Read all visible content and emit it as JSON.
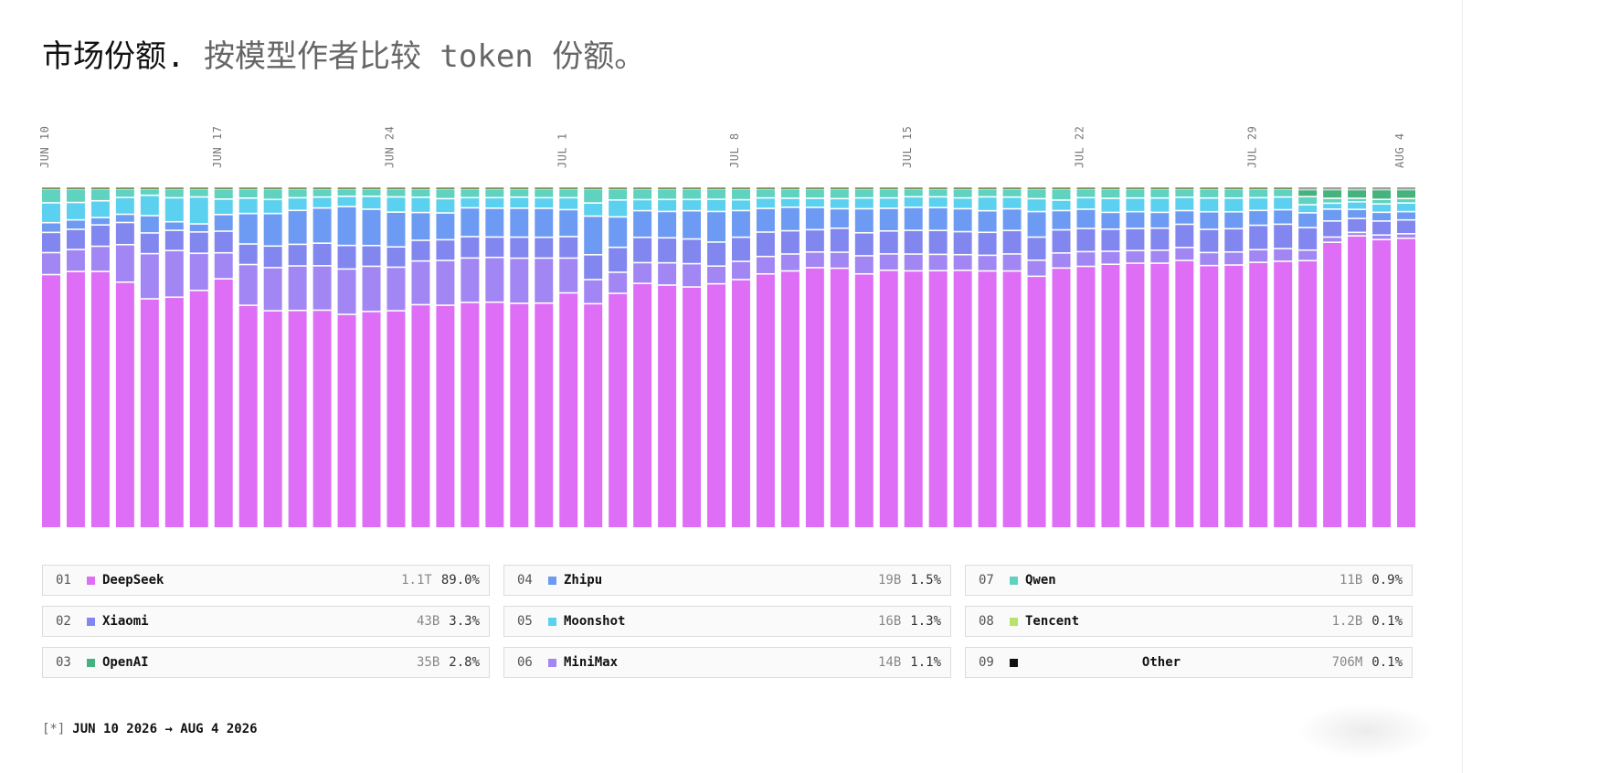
{
  "title": {
    "main": "市场份额",
    "dot": ".",
    "sub": " 按模型作者比较 token 份额。"
  },
  "colors": {
    "DeepSeek": "#dd6ef5",
    "MiniMax": "#a286f4",
    "Xiaomi": "#8286ef",
    "Zhipu": "#6d9bf3",
    "Moonshot": "#5cd0ef",
    "Qwen": "#5fd3c0",
    "OpenAI": "#46b27d",
    "Tencent": "#b4e46a",
    "Other": "#111111"
  },
  "legend": [
    {
      "rank": "01",
      "name": "DeepSeek",
      "tokens": "1.1T",
      "pct": "89.0%",
      "color": "#dd6ef5"
    },
    {
      "rank": "02",
      "name": "Xiaomi",
      "tokens": "43B",
      "pct": "3.3%",
      "color": "#8286ef"
    },
    {
      "rank": "03",
      "name": "OpenAI",
      "tokens": "35B",
      "pct": "2.8%",
      "color": "#46b27d"
    },
    {
      "rank": "04",
      "name": "Zhipu",
      "tokens": "19B",
      "pct": "1.5%",
      "color": "#6d9bf3"
    },
    {
      "rank": "05",
      "name": "Moonshot",
      "tokens": "16B",
      "pct": "1.3%",
      "color": "#5cd0ef"
    },
    {
      "rank": "06",
      "name": "MiniMax",
      "tokens": "14B",
      "pct": "1.1%",
      "color": "#a286f4"
    },
    {
      "rank": "07",
      "name": "Qwen",
      "tokens": "11B",
      "pct": "0.9%",
      "color": "#5fd3c0"
    },
    {
      "rank": "08",
      "name": "Tencent",
      "tokens": "1.2B",
      "pct": "0.1%",
      "color": "#b4e46a"
    },
    {
      "rank": "09",
      "name": "Other",
      "tokens": "706M",
      "pct": "0.1%",
      "color": "#111111"
    }
  ],
  "footer": {
    "star": "[*]",
    "range": "JUN 10 2026 → AUG 4 2026"
  },
  "chart_data": {
    "type": "bar",
    "stacked": true,
    "normalized": true,
    "ylim": [
      0,
      100
    ],
    "x_ticks": [
      {
        "index": 0,
        "label": "JUN 10"
      },
      {
        "index": 7,
        "label": "JUN 17"
      },
      {
        "index": 14,
        "label": "JUN 24"
      },
      {
        "index": 21,
        "label": "JUL 1"
      },
      {
        "index": 28,
        "label": "JUL 8"
      },
      {
        "index": 35,
        "label": "JUL 15"
      },
      {
        "index": 42,
        "label": "JUL 22"
      },
      {
        "index": 49,
        "label": "JUL 29"
      },
      {
        "index": 55,
        "label": "AUG 4"
      }
    ],
    "categories": [
      "Jun 10",
      "Jun 11",
      "Jun 12",
      "Jun 13",
      "Jun 14",
      "Jun 15",
      "Jun 16",
      "Jun 17",
      "Jun 18",
      "Jun 19",
      "Jun 20",
      "Jun 21",
      "Jun 22",
      "Jun 23",
      "Jun 24",
      "Jun 25",
      "Jun 26",
      "Jun 27",
      "Jun 28",
      "Jun 29",
      "Jun 30",
      "Jul 1",
      "Jul 2",
      "Jul 3",
      "Jul 4",
      "Jul 5",
      "Jul 6",
      "Jul 7",
      "Jul 8",
      "Jul 9",
      "Jul 10",
      "Jul 11",
      "Jul 12",
      "Jul 13",
      "Jul 14",
      "Jul 15",
      "Jul 16",
      "Jul 17",
      "Jul 18",
      "Jul 19",
      "Jul 20",
      "Jul 21",
      "Jul 22",
      "Jul 23",
      "Jul 24",
      "Jul 25",
      "Jul 26",
      "Jul 27",
      "Jul 28",
      "Jul 29",
      "Jul 30",
      "Jul 31",
      "Aug 1",
      "Aug 2",
      "Aug 3",
      "Aug 4"
    ],
    "series": [
      {
        "name": "DeepSeek",
        "values": [
          72.7,
          73.6,
          73.3,
          68.8,
          67.5,
          67.3,
          67.8,
          69.0,
          65.0,
          63.4,
          63.5,
          63.7,
          62.6,
          63.7,
          64.3,
          65.9,
          65.6,
          66.5,
          66.5,
          65.1,
          65.9,
          68.9,
          65.0,
          67.8,
          70.6,
          70.9,
          68.3,
          70.2,
          70.9,
          72.9,
          74.2,
          74.6,
          74.6,
          72.9,
          74.1,
          74.9,
          74.2,
          74.0,
          73.9,
          72.3,
          72.0,
          74.2,
          74.6,
          75.2,
          75.5,
          75.5,
          76.3,
          74.6,
          74.6,
          75.2,
          75.5,
          76.0,
          81.8,
          83.9,
          82.5,
          83.9
        ]
      },
      {
        "name": "MiniMax",
        "values": [
          6.3,
          6.3,
          7.2,
          10.5,
          13.3,
          13.6,
          10.6,
          7.2,
          11.9,
          12.6,
          13.0,
          13.0,
          13.3,
          13.3,
          12.9,
          12.9,
          13.2,
          13.1,
          13.2,
          13.1,
          13.2,
          10.2,
          7.0,
          6.1,
          6.0,
          6.5,
          6.6,
          5.1,
          5.2,
          5.0,
          4.9,
          4.5,
          4.6,
          5.2,
          4.7,
          4.9,
          4.7,
          4.5,
          4.5,
          4.8,
          4.6,
          4.3,
          4.2,
          3.7,
          3.6,
          3.7,
          3.7,
          3.7,
          3.7,
          3.6,
          3.6,
          3.0,
          1.5,
          1.0,
          1.3,
          1.3
        ]
      },
      {
        "name": "Xiaomi",
        "values": [
          5.8,
          5.8,
          6.1,
          6.2,
          6.1,
          5.9,
          6.1,
          6.0,
          6.0,
          6.3,
          6.3,
          6.6,
          6.9,
          6.1,
          6.0,
          6.1,
          6.1,
          6.3,
          6.0,
          6.1,
          6.1,
          6.3,
          7.2,
          7.2,
          7.3,
          7.3,
          7.0,
          6.9,
          6.9,
          7.0,
          6.7,
          6.4,
          6.9,
          6.6,
          6.6,
          6.9,
          6.9,
          6.6,
          6.6,
          6.6,
          6.6,
          6.6,
          6.6,
          6.3,
          6.3,
          6.3,
          6.6,
          6.6,
          6.6,
          6.9,
          6.9,
          6.4,
          4.6,
          4.0,
          4.0,
          4.0
        ]
      },
      {
        "name": "Zhipu",
        "values": [
          2.8,
          2.7,
          2.1,
          2.3,
          5.1,
          2.5,
          2.3,
          4.6,
          8.9,
          9.5,
          9.9,
          10.3,
          11.4,
          10.7,
          10.3,
          8.2,
          7.9,
          8.5,
          8.5,
          8.4,
          8.5,
          7.9,
          11.2,
          8.8,
          7.7,
          7.7,
          8.0,
          8.8,
          7.6,
          6.8,
          6.8,
          6.4,
          5.6,
          6.9,
          6.5,
          6.7,
          6.6,
          6.6,
          6.2,
          6.1,
          7.3,
          5.5,
          5.5,
          4.8,
          4.8,
          4.5,
          3.9,
          5.0,
          4.8,
          4.2,
          4.1,
          4.2,
          3.4,
          2.6,
          2.5,
          2.4
        ]
      },
      {
        "name": "Moonshot",
        "values": [
          5.7,
          5.0,
          4.8,
          4.7,
          6.0,
          7.0,
          7.7,
          4.3,
          4.5,
          4.1,
          3.7,
          3.2,
          3.0,
          3.8,
          4.5,
          4.5,
          4.2,
          3.0,
          3.1,
          3.2,
          3.1,
          3.5,
          3.8,
          4.9,
          3.2,
          3.5,
          3.2,
          3.5,
          3.1,
          3.0,
          2.6,
          2.6,
          2.9,
          3.1,
          3.0,
          3.1,
          3.1,
          3.1,
          4.0,
          3.3,
          3.7,
          3.0,
          3.3,
          4.0,
          3.9,
          4.1,
          3.8,
          3.9,
          3.9,
          3.6,
          3.6,
          2.3,
          1.7,
          2.2,
          2.4,
          2.5
        ]
      },
      {
        "name": "Qwen",
        "values": [
          4.0,
          3.9,
          3.4,
          2.4,
          1.9,
          2.6,
          2.3,
          2.8,
          2.7,
          3.1,
          2.6,
          2.4,
          2.2,
          2.2,
          2.4,
          2.5,
          2.9,
          2.6,
          2.6,
          2.4,
          2.6,
          2.6,
          4.1,
          3.2,
          3.1,
          3.1,
          3.0,
          3.0,
          3.1,
          2.6,
          2.7,
          2.7,
          2.8,
          2.6,
          2.6,
          2.3,
          2.3,
          2.6,
          2.3,
          2.3,
          2.8,
          3.2,
          2.5,
          2.7,
          2.6,
          2.6,
          2.4,
          2.6,
          2.6,
          2.5,
          2.3,
          2.3,
          1.4,
          1.0,
          1.3,
          1.3
        ]
      },
      {
        "name": "OpenAI",
        "values": [
          0,
          0,
          0,
          0,
          0,
          0,
          0,
          0,
          0,
          0,
          0,
          0,
          0,
          0,
          0,
          0,
          0,
          0,
          0,
          0,
          0,
          0,
          0,
          0,
          0,
          0,
          0,
          0,
          0,
          0,
          0,
          0,
          0,
          0,
          0,
          0,
          0,
          0,
          0,
          0,
          0,
          0,
          0,
          0,
          0,
          0,
          0,
          0,
          0,
          0,
          0,
          2.0,
          2.5,
          2.5,
          2.8,
          2.6
        ]
      },
      {
        "name": "Tencent",
        "values": [
          0.3,
          0.3,
          0.3,
          0.3,
          0.3,
          0.3,
          0.3,
          0.3,
          0.3,
          0.3,
          0.3,
          0.3,
          0.3,
          0.3,
          0.3,
          0.3,
          0.3,
          0.3,
          0.3,
          0.3,
          0.3,
          0.3,
          0.3,
          0.3,
          0.3,
          0.3,
          0.3,
          0.3,
          0.3,
          0.3,
          0.3,
          0.3,
          0.3,
          0.3,
          0.3,
          0.3,
          0.3,
          0.3,
          0.3,
          0.3,
          0.3,
          0.3,
          0.3,
          0.3,
          0.3,
          0.3,
          0.3,
          0.3,
          0.3,
          0.3,
          0.3,
          0.3,
          0.3,
          0.3,
          0.3,
          0.3
        ]
      },
      {
        "name": "Other",
        "values": [
          0.2,
          0.2,
          0.2,
          0.2,
          0.2,
          0.2,
          0.2,
          0.2,
          0.2,
          0.2,
          0.2,
          0.2,
          0.2,
          0.2,
          0.2,
          0.2,
          0.2,
          0.2,
          0.2,
          0.2,
          0.2,
          0.2,
          0.2,
          0.2,
          0.2,
          0.2,
          0.2,
          0.2,
          0.2,
          0.2,
          0.2,
          0.2,
          0.2,
          0.2,
          0.2,
          0.2,
          0.2,
          0.2,
          0.2,
          0.2,
          0.2,
          0.2,
          0.2,
          0.2,
          0.2,
          0.2,
          0.2,
          0.2,
          0.2,
          0.2,
          0.2,
          0.4,
          0.4,
          0.4,
          0.4,
          0.4
        ]
      }
    ]
  }
}
